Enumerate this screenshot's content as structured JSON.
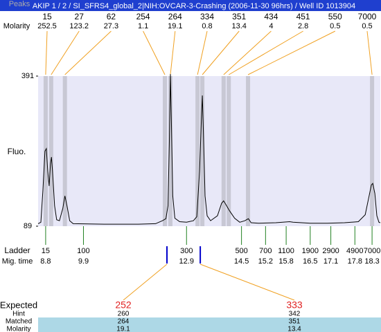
{
  "chart_data": {
    "type": "line",
    "title": "AKIP 1 / 2 / SI_SFRS4_global_2|NIH:OVCAR-3-Crashing (2006-11-30 96hrs) / Well ID 1013904",
    "y_label": "Fluo.",
    "peaks_label": "Peaks",
    "molarity_label": "Molarity",
    "ladder_label": "Ladder",
    "mig_time_label": "Mig. time",
    "color": "#000000",
    "background": "#e8e8f8",
    "xlim": [
      8.58,
      18.54
    ],
    "ylim": [
      89,
      391
    ],
    "yticks": [
      89,
      391
    ],
    "x": [
      8.58,
      8.66,
      8.72,
      8.78,
      8.82,
      8.86,
      8.9,
      8.94,
      8.97,
      9.0,
      9.06,
      9.12,
      9.2,
      9.3,
      9.36,
      9.42,
      9.5,
      9.6,
      10.5,
      11.5,
      12.0,
      12.2,
      12.3,
      12.36,
      12.4,
      12.43,
      12.46,
      12.5,
      12.56,
      12.7,
      12.9,
      13.1,
      13.2,
      13.28,
      13.33,
      13.36,
      13.39,
      13.44,
      13.5,
      13.6,
      13.8,
      13.92,
      13.98,
      14.05,
      14.15,
      14.3,
      14.45,
      14.6,
      14.7,
      14.78,
      15.0,
      15.5,
      15.9,
      16.0,
      16.5,
      17.0,
      17.5,
      17.9,
      18.1,
      18.2,
      18.28,
      18.32,
      18.38,
      18.44,
      18.5,
      18.54
    ],
    "values": [
      94,
      97,
      160,
      240,
      245,
      200,
      170,
      215,
      228,
      200,
      130,
      102,
      100,
      125,
      150,
      130,
      100,
      94,
      93,
      93,
      94,
      100,
      104,
      130,
      260,
      395,
      300,
      150,
      105,
      98,
      97,
      100,
      108,
      200,
      300,
      352,
      280,
      150,
      110,
      100,
      110,
      135,
      140,
      132,
      120,
      105,
      97,
      100,
      104,
      96,
      95,
      96,
      98,
      97,
      95,
      95,
      96,
      98,
      112,
      145,
      172,
      175,
      155,
      110,
      97,
      96
    ],
    "peaks": {
      "sizes": [
        15,
        27,
        62,
        254,
        264,
        334,
        351,
        434,
        451,
        550,
        7000
      ],
      "molarity": [
        252.5,
        123.2,
        27.3,
        1.1,
        19.1,
        0.8,
        13.4,
        4,
        2.8,
        0.5,
        0.5
      ],
      "times": [
        8.8,
        8.96,
        9.36,
        12.27,
        12.43,
        13.22,
        13.36,
        13.98,
        14.13,
        14.69,
        18.3
      ],
      "band_color": "#c8c8d4",
      "line_color": "#f0a020"
    },
    "ladder": {
      "sizes": [
        15,
        100,
        300,
        500,
        700,
        1100,
        1900,
        2900,
        4900,
        7000
      ],
      "times": [
        8.8,
        9.9,
        12.9,
        14.5,
        15.2,
        15.8,
        16.5,
        17.1,
        17.8,
        18.3
      ],
      "color": "#208020"
    },
    "expected": {
      "labels": [
        "Expected",
        "Hint",
        "Matched",
        "Molarity"
      ],
      "expected": [
        252,
        333
      ],
      "hint": [
        260,
        342
      ],
      "matched": [
        264,
        351
      ],
      "molarity": [
        19.1,
        13.4
      ],
      "times": [
        12.33,
        13.3
      ],
      "expected_color": "#e02020",
      "mark_color": "#0000cc",
      "row_color": "#add8e6"
    }
  }
}
